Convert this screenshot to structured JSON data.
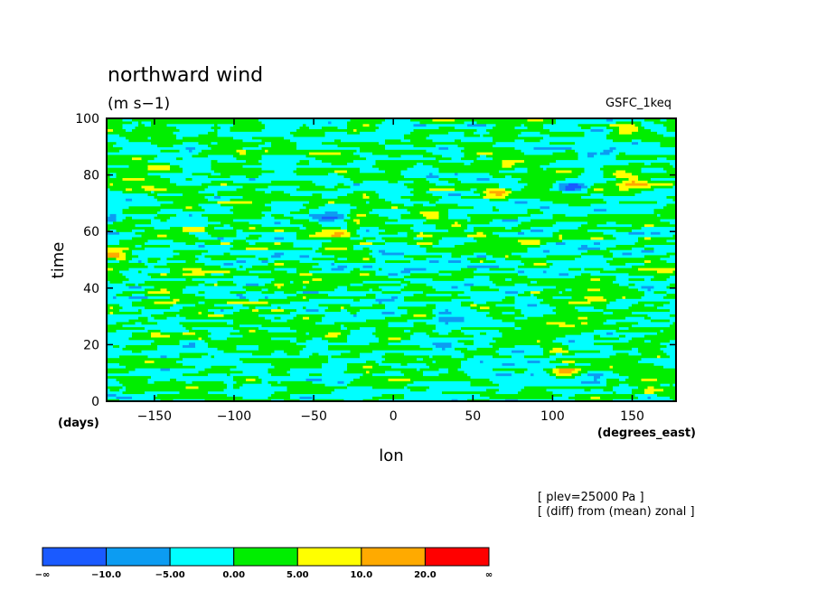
{
  "chart_data": {
    "type": "heatmap",
    "title": "northward wind",
    "units": "(m s−1)",
    "dataset": "GSFC_1keq",
    "xlabel": "lon",
    "xunits": "(degrees_east)",
    "ylabel": "time",
    "yunits": "(days)",
    "xlim": [
      -180,
      177.5
    ],
    "ylim": [
      0,
      100
    ],
    "x_ticks": [
      -150,
      -100,
      -50,
      0,
      50,
      100,
      150
    ],
    "x_tick_labels": [
      "−150",
      "−100",
      "−50",
      "0",
      "50",
      "100",
      "150"
    ],
    "y_ticks": [
      0,
      20,
      40,
      60,
      80,
      100
    ],
    "y_tick_labels": [
      "0",
      "20",
      "40",
      "60",
      "80",
      "100"
    ],
    "notes": [
      "[ plev=25000 Pa ]",
      "[ (diff) from (mean) zonal ]"
    ],
    "levels": [
      -10,
      -5,
      0,
      5,
      10,
      20
    ],
    "colorbar": {
      "colors": [
        "#1a5aff",
        "#0c9cf2",
        "#00ffff",
        "#00ee00",
        "#ffff00",
        "#ffaa00",
        "#ff0000"
      ],
      "labels": [
        "−∞",
        "−10.0",
        "−5.00",
        "0.00",
        "5.00",
        "10.0",
        "20.0",
        "∞"
      ]
    },
    "highlights": [
      {
        "lon": 65,
        "time": 74,
        "value": 21
      },
      {
        "lon": 150,
        "time": 77,
        "value": 13
      },
      {
        "lon": 148,
        "time": 96,
        "value": 12
      },
      {
        "lon": -37,
        "time": 59,
        "value": 12
      },
      {
        "lon": -172,
        "time": 52,
        "value": 11
      },
      {
        "lon": 25,
        "time": 66,
        "value": 11
      },
      {
        "lon": 108,
        "time": 11,
        "value": 10
      },
      {
        "lon": 100,
        "time": 19,
        "value": 10
      },
      {
        "lon": -40,
        "time": 65,
        "value": -10
      },
      {
        "lon": 115,
        "time": 76,
        "value": -9
      },
      {
        "lon": 32,
        "time": 20,
        "value": -9
      }
    ]
  }
}
